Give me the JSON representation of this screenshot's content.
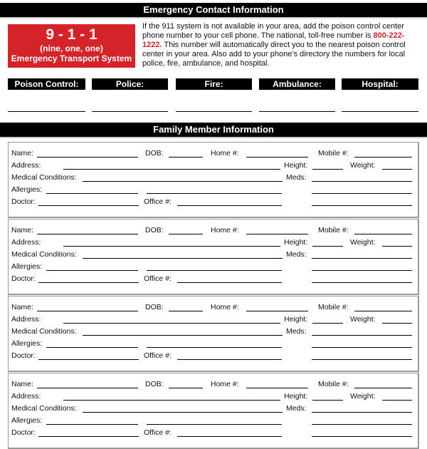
{
  "header": {
    "title": "Emergency Contact Information"
  },
  "emergency_box": {
    "number": "9 - 1 - 1",
    "spelled": "(nine, one, one)",
    "caption": "Emergency Transport System"
  },
  "intro": {
    "before": "If the 911 system is not available in your area, add the poison control center phone number to your cell phone. The national, toll-free number is ",
    "phone": "800-222-1222.",
    "after": " This number will automatically direct you to the nearest poison control center in your area. Also add to your phone’s directory the numbers for local police, fire, ambulance, and hospital."
  },
  "contacts": [
    "Poison Control:",
    "Police:",
    "Fire:",
    "Ambulance:",
    "Hospital:"
  ],
  "family": {
    "title": "Family Member Information",
    "labels": {
      "name": "Name:",
      "dob": "DOB:",
      "home": "Home #:",
      "mobile": "Mobile #:",
      "address": "Address:",
      "height": "Height:",
      "weight": "Weight:",
      "medical": "Medical Conditions:",
      "meds": "Meds:",
      "allergies": "Allergies:",
      "doctor": "Doctor:",
      "office": "Office #:"
    },
    "card_count": 4
  },
  "colors": {
    "accent_red": "#d4242a",
    "bar": "#000000"
  }
}
